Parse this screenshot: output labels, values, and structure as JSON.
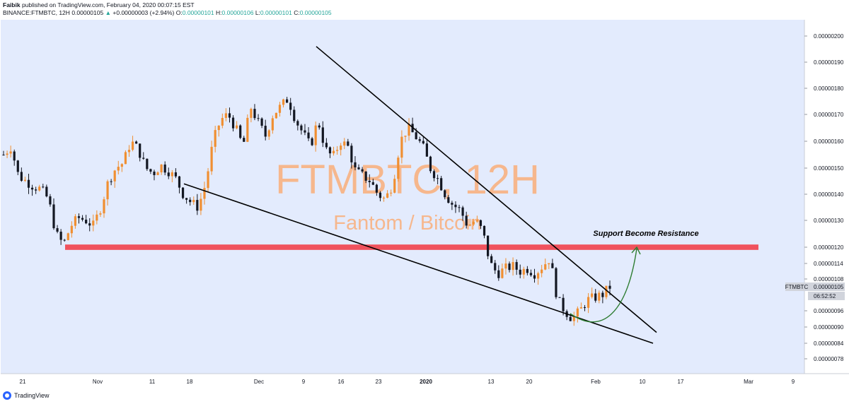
{
  "header": {
    "author": "Faibik",
    "published": "published on TradingView.com, February 04, 2020 00:07:15 EST",
    "symbol": "BINANCE:FTMBTC, 12H",
    "last_price": "0.00000105",
    "change_arrow": "▲",
    "change": "+0.00000003 (+2.94%)",
    "o_label": "O:",
    "o_value": "0.00000101",
    "h_label": "H:",
    "h_value": "0.00000106",
    "l_label": "L:",
    "l_value": "0.00000101",
    "c_label": "C:",
    "c_value": "0.00000105"
  },
  "footer": {
    "brand": "TradingView"
  },
  "colors": {
    "chart_bg": "#e3ebfd",
    "up_candle": "#f08f32",
    "down_candle": "#131722",
    "support_band": "#f0525d",
    "arrow": "#2e7d32",
    "watermark": "#f6b78d"
  },
  "chart_data": {
    "type": "candlestick",
    "watermark_title": "FTMBTC, 12H",
    "watermark_subtitle": "Fantom / Bitcoin",
    "annotation": "Support Become Resistance",
    "ylim": [
      7.4e-07,
      2.04e-06
    ],
    "y_ticks": [
      "0.00000200",
      "0.00000190",
      "0.00000180",
      "0.00000170",
      "0.00000160",
      "0.00000150",
      "0.00000140",
      "0.00000130",
      "0.00000120",
      "0.00000114",
      "0.00000108",
      "0.00000105",
      "0.00000096",
      "0.00000090",
      "0.00000084",
      "0.00000078"
    ],
    "y_tick_values": [
      200,
      190,
      180,
      170,
      160,
      150,
      140,
      130,
      120,
      114,
      108,
      105,
      96,
      90,
      84,
      78
    ],
    "price_label": "FTMBTC",
    "price_value": "0.00000105",
    "countdown": "06:52:52",
    "x_ticks": [
      "21",
      "Nov",
      "11",
      "18",
      "Dec",
      "9",
      "16",
      "23",
      "2020",
      "13",
      "20",
      "Feb",
      "10",
      "17",
      "Mar",
      "9"
    ],
    "support_level": [
      119,
      121
    ],
    "upper_trendline": [
      [
        0,
        196
      ],
      [
        1,
        88
      ]
    ],
    "lower_trendline": [
      [
        0,
        144
      ],
      [
        1,
        84
      ]
    ],
    "close_path": [
      155,
      158,
      147,
      145,
      143,
      142,
      138,
      125,
      121,
      128,
      131,
      130,
      128,
      135,
      145,
      150,
      152,
      160,
      157,
      150,
      148,
      151,
      149,
      146,
      140,
      137,
      135,
      144,
      160,
      168,
      170,
      165,
      158,
      173,
      167,
      162,
      170,
      173,
      176,
      168,
      163,
      158,
      168,
      157,
      154,
      160,
      158,
      149,
      147,
      145,
      140,
      138,
      144,
      160,
      165,
      162,
      158,
      150,
      146,
      140,
      136,
      134,
      128,
      130,
      126,
      114,
      110,
      112,
      113,
      111,
      112,
      110,
      113,
      116,
      100,
      96,
      93,
      96,
      100,
      101,
      102,
      105
    ]
  }
}
